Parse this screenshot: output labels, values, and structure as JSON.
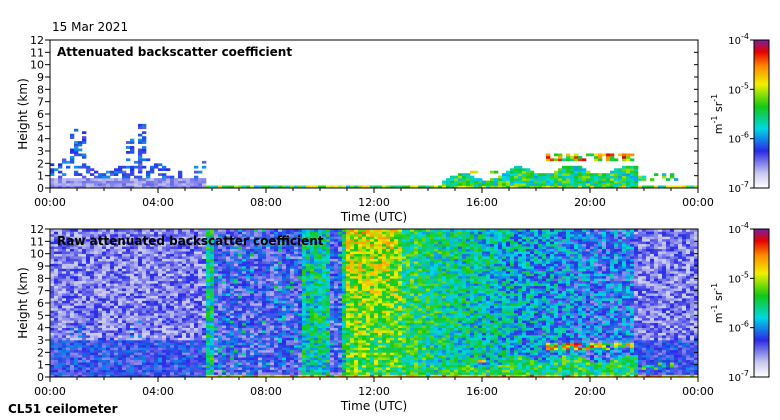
{
  "header": {
    "date": "15 Mar 2021"
  },
  "footer": {
    "instrument": "CL51 ceilometer"
  },
  "chart_data": [
    {
      "type": "heatmap",
      "title": "Attenuated backscatter coefficient",
      "xlabel": "Time (UTC)",
      "ylabel": "Height (km)",
      "x_ticks": [
        "00:00",
        "04:00",
        "08:00",
        "12:00",
        "16:00",
        "20:00",
        "00:00"
      ],
      "y_ticks": [
        "0",
        "1",
        "2",
        "3",
        "4",
        "5",
        "6",
        "7",
        "8",
        "9",
        "10",
        "11",
        "12"
      ],
      "xlim_hours": [
        0,
        24
      ],
      "ylim_km": [
        0,
        12
      ],
      "colorbar": {
        "unit_text": "m-1 sr-1",
        "ticks": [
          {
            "base": "10",
            "exp": "-4"
          },
          {
            "base": "10",
            "exp": "-5"
          },
          {
            "base": "10",
            "exp": "-6"
          },
          {
            "base": "10",
            "exp": "-7"
          }
        ]
      }
    },
    {
      "type": "heatmap",
      "title": "Raw attenuated backscatter coefficient",
      "xlabel": "Time (UTC)",
      "ylabel": "Height (km)",
      "x_ticks": [
        "00:00",
        "04:00",
        "08:00",
        "12:00",
        "16:00",
        "20:00",
        "00:00"
      ],
      "y_ticks": [
        "0",
        "1",
        "2",
        "3",
        "4",
        "5",
        "6",
        "7",
        "8",
        "9",
        "10",
        "11",
        "12"
      ],
      "xlim_hours": [
        0,
        24
      ],
      "ylim_km": [
        0,
        12
      ],
      "colorbar": {
        "unit_text": "m-1 sr-1",
        "ticks": [
          {
            "base": "10",
            "exp": "-4"
          },
          {
            "base": "10",
            "exp": "-5"
          },
          {
            "base": "10",
            "exp": "-6"
          },
          {
            "base": "10",
            "exp": "-7"
          }
        ]
      }
    }
  ]
}
